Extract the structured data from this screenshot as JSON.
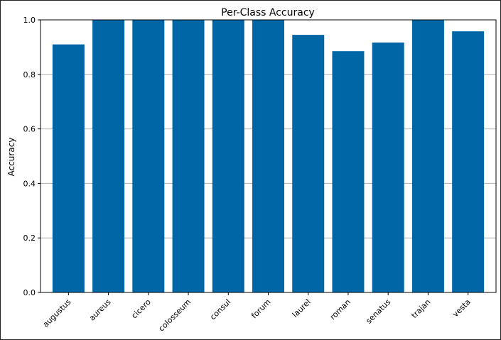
{
  "chart_data": {
    "type": "bar",
    "title": "Per-Class Accuracy",
    "xlabel": "",
    "ylabel": "Accuracy",
    "categories": [
      "augustus",
      "aureus",
      "cicero",
      "colosseum",
      "consul",
      "forum",
      "laurel",
      "roman",
      "senatus",
      "trajan",
      "vesta"
    ],
    "values": [
      0.91,
      1.0,
      1.0,
      1.0,
      1.0,
      1.0,
      0.945,
      0.885,
      0.917,
      1.0,
      0.958
    ],
    "ylim": [
      0,
      1.0
    ],
    "yticks": [
      "0.0",
      "0.2",
      "0.4",
      "0.6",
      "0.8",
      "1.0"
    ],
    "grid": "horizontal",
    "legend": "none",
    "bar_color": "#0066a6",
    "grid_color": "#b0b0b0"
  }
}
